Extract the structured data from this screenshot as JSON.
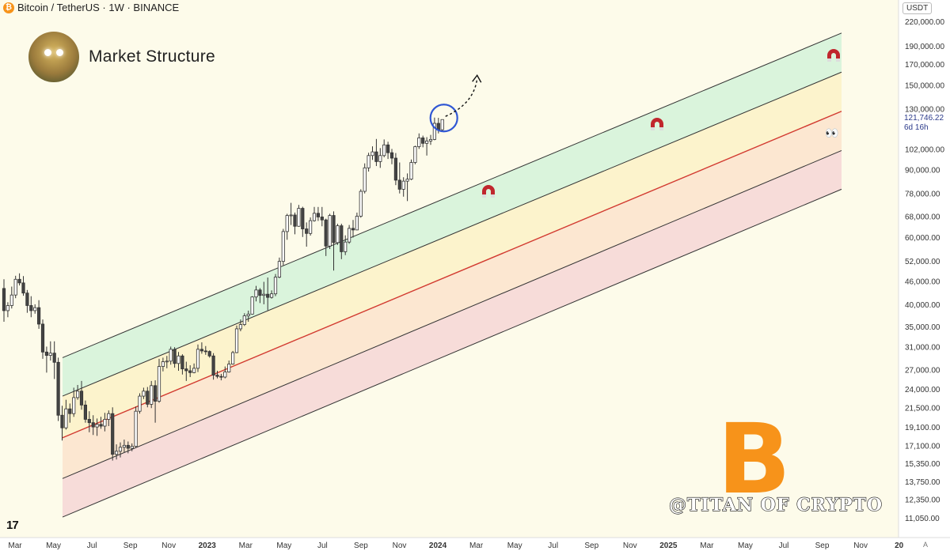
{
  "header": {
    "symbol": "Bitcoin / TetherUS · 1W · BINANCE",
    "currency": "USDT",
    "btc_symbol": "₿"
  },
  "brand": {
    "title": "Market Structure",
    "handle": "@TITAN OF CRYPTO",
    "logo_symbol": "B"
  },
  "price_label": {
    "price": "121,746.22",
    "countdown": "6d 16h"
  },
  "colors": {
    "background": "#fdfbea",
    "green_zone": "#d3f2d9",
    "yellow_zone": "#fbf1c7",
    "orange_zone": "#fbe3cc",
    "pink_zone": "#f6d6d6",
    "channel_line": "#333333",
    "mid_line": "#d23a30",
    "bull_candle": "#ffffff",
    "bear_candle": "#444444",
    "highlight_circle": "#3057d4",
    "bitcoin_orange": "#f7931a"
  },
  "axis_button": "A",
  "chart_data": {
    "type": "candlestick",
    "title": "",
    "y_scale": "log",
    "ylim": [
      10500,
      230000
    ],
    "x_start": "2022-03",
    "x_end": "2026-01",
    "y_ticks": [
      "220,000.00",
      "190,000.00",
      "170,000.00",
      "150,000.00",
      "130,000.00",
      "102,000.00",
      "90,000.00",
      "78,000.00",
      "68,000.00",
      "60,000.00",
      "52,000.00",
      "46,000.00",
      "40,000.00",
      "35,000.00",
      "31,000.00",
      "27,000.00",
      "24,000.00",
      "21,500.00",
      "19,100.00",
      "17,100.00",
      "15,350.00",
      "13,750.00",
      "12,350.00",
      "11,050.00"
    ],
    "x_ticks": [
      "Mar",
      "May",
      "Jul",
      "Sep",
      "Nov",
      "2023",
      "Mar",
      "May",
      "Jul",
      "Sep",
      "Nov",
      "2024",
      "Mar",
      "May",
      "Jul",
      "Sep",
      "Nov",
      "2025",
      "Mar",
      "May",
      "Jul",
      "Sep",
      "Nov",
      "20"
    ],
    "channel_lines": [
      {
        "name": "upper",
        "start": 29000,
        "end": 205000
      },
      {
        "name": "upper-mid",
        "start": 23000,
        "end": 162000
      },
      {
        "name": "mid",
        "start": 17900,
        "end": 128000
      },
      {
        "name": "lower-mid",
        "start": 14000,
        "end": 101000
      },
      {
        "name": "lower",
        "start": 11100,
        "end": 80000
      }
    ],
    "series": [
      {
        "values": [
          [
            44000,
            46500,
            36000,
            38500
          ],
          [
            38500,
            40500,
            37000,
            39700
          ],
          [
            39700,
            44500,
            39000,
            42300
          ],
          [
            42300,
            47500,
            41500,
            46500
          ],
          [
            46500,
            48200,
            44800,
            45500
          ],
          [
            45500,
            47400,
            42100,
            42800
          ],
          [
            42800,
            43600,
            38000,
            39700
          ],
          [
            39700,
            42000,
            37000,
            38500
          ],
          [
            38500,
            40000,
            37800,
            39200
          ],
          [
            39200,
            41000,
            34500,
            35500
          ],
          [
            35500,
            36500,
            28800,
            30000
          ],
          [
            30000,
            31000,
            26500,
            29400
          ],
          [
            29400,
            32000,
            28500,
            29800
          ],
          [
            29800,
            32000,
            25500,
            28200
          ],
          [
            28200,
            29000,
            19800,
            20500
          ],
          [
            20500,
            21700,
            17600,
            19000
          ],
          [
            19000,
            22500,
            18800,
            21300
          ],
          [
            21300,
            22000,
            19600,
            20700
          ],
          [
            20700,
            24200,
            20300,
            22800
          ],
          [
            22800,
            24600,
            22500,
            23700
          ],
          [
            23700,
            25200,
            21200,
            21800
          ],
          [
            21800,
            22400,
            19600,
            20000
          ],
          [
            20000,
            21000,
            18500,
            19600
          ],
          [
            19600,
            20500,
            18200,
            19100
          ],
          [
            19100,
            20100,
            18100,
            19400
          ],
          [
            19400,
            20300,
            18900,
            19200
          ],
          [
            19200,
            20800,
            18600,
            20000
          ],
          [
            20000,
            21100,
            19200,
            20700
          ],
          [
            20700,
            21500,
            15600,
            16200
          ],
          [
            16200,
            17200,
            15700,
            16500
          ],
          [
            16500,
            17400,
            15900,
            16900
          ],
          [
            16900,
            17700,
            16400,
            17100
          ],
          [
            17100,
            17500,
            16300,
            16800
          ],
          [
            16800,
            17300,
            16500,
            17000
          ],
          [
            17000,
            21600,
            16900,
            21000
          ],
          [
            21000,
            23400,
            20700,
            23000
          ],
          [
            23000,
            24200,
            22600,
            23700
          ],
          [
            23700,
            24300,
            21500,
            21900
          ],
          [
            21900,
            25200,
            21400,
            24500
          ],
          [
            24500,
            25300,
            19600,
            22300
          ],
          [
            22300,
            28800,
            22100,
            27500
          ],
          [
            27500,
            29000,
            26700,
            28300
          ],
          [
            28300,
            29300,
            27200,
            28400
          ],
          [
            28400,
            31000,
            27800,
            30500
          ],
          [
            30500,
            30900,
            27300,
            28000
          ],
          [
            28000,
            30000,
            26800,
            29300
          ],
          [
            29300,
            29600,
            26200,
            27100
          ],
          [
            27100,
            28300,
            25200,
            26800
          ],
          [
            26800,
            27700,
            25800,
            26500
          ],
          [
            26500,
            28000,
            26400,
            27200
          ],
          [
            27200,
            31400,
            26600,
            30500
          ],
          [
            30500,
            31800,
            29700,
            30200
          ],
          [
            30200,
            31100,
            29500,
            30100
          ],
          [
            30100,
            30300,
            29000,
            29300
          ],
          [
            29300,
            29800,
            25400,
            26100
          ],
          [
            26100,
            26800,
            25600,
            25900
          ],
          [
            25900,
            26300,
            25300,
            25800
          ],
          [
            25800,
            27500,
            25600,
            26600
          ],
          [
            26600,
            28500,
            26500,
            27900
          ],
          [
            27900,
            30200,
            27800,
            29900
          ],
          [
            29900,
            35200,
            29800,
            34500
          ],
          [
            34500,
            36500,
            34000,
            35400
          ],
          [
            35400,
            37900,
            35100,
            37300
          ],
          [
            37300,
            38500,
            36000,
            37700
          ],
          [
            37700,
            42000,
            37600,
            41800
          ],
          [
            41800,
            44700,
            40700,
            43600
          ],
          [
            43600,
            44100,
            40300,
            42200
          ],
          [
            42200,
            45800,
            40000,
            42500
          ],
          [
            42500,
            47000,
            38600,
            41700
          ],
          [
            41700,
            43500,
            41400,
            42600
          ],
          [
            42600,
            48000,
            42000,
            47100
          ],
          [
            47100,
            53000,
            46800,
            51800
          ],
          [
            51800,
            63000,
            50600,
            62000
          ],
          [
            62000,
            69000,
            59000,
            68300
          ],
          [
            68300,
            73700,
            64500,
            68500
          ],
          [
            68500,
            69500,
            61000,
            64000
          ],
          [
            64000,
            72800,
            63800,
            71300
          ],
          [
            71300,
            72000,
            60000,
            63000
          ],
          [
            63000,
            65500,
            56600,
            61300
          ],
          [
            61300,
            67500,
            60500,
            66200
          ],
          [
            66200,
            71900,
            65800,
            69200
          ],
          [
            69200,
            71900,
            66100,
            67700
          ],
          [
            67700,
            71900,
            64000,
            66500
          ],
          [
            66500,
            67000,
            53500,
            56800
          ],
          [
            56800,
            69000,
            55800,
            68300
          ],
          [
            68300,
            70000,
            49000,
            58000
          ],
          [
            58000,
            65000,
            57200,
            64200
          ],
          [
            64200,
            65000,
            52500,
            54900
          ],
          [
            54900,
            60600,
            53800,
            58200
          ],
          [
            58200,
            64500,
            57600,
            63200
          ],
          [
            63200,
            66500,
            59800,
            62600
          ],
          [
            62600,
            69500,
            62500,
            68000
          ],
          [
            68000,
            80000,
            67400,
            79000
          ],
          [
            79000,
            93500,
            78000,
            91000
          ],
          [
            91000,
            99700,
            89000,
            98000
          ],
          [
            98000,
            103600,
            95500,
            100200
          ],
          [
            100200,
            108300,
            92000,
            94500
          ],
          [
            94500,
            102500,
            91000,
            98000
          ],
          [
            98000,
            108000,
            97000,
            104500
          ],
          [
            104500,
            106500,
            96000,
            99700
          ],
          [
            99700,
            102000,
            93000,
            96500
          ],
          [
            96500,
            99500,
            82000,
            84500
          ],
          [
            84500,
            94000,
            78000,
            80000
          ],
          [
            80000,
            86000,
            76500,
            84000
          ],
          [
            84000,
            88000,
            74500,
            85000
          ],
          [
            85000,
            95700,
            84500,
            94000
          ],
          [
            94000,
            104000,
            93000,
            103400
          ],
          [
            103400,
            112000,
            102000,
            109000
          ],
          [
            109000,
            110500,
            103000,
            105500
          ],
          [
            105500,
            109500,
            98000,
            107000
          ],
          [
            107000,
            111000,
            104500,
            108000
          ],
          [
            108000,
            123200,
            107500,
            119000
          ],
          [
            119000,
            123000,
            112000,
            114500
          ],
          [
            114500,
            121700,
            113900,
            121746
          ]
        ]
      }
    ],
    "annotations": [
      "magnet-target",
      "magnet-target",
      "magnet-target",
      "highlight-circle",
      "projection-arrow",
      "eyes"
    ]
  }
}
